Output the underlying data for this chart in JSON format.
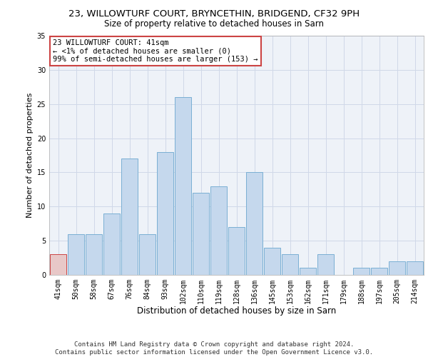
{
  "title_line1": "23, WILLOWTURF COURT, BRYNCETHIN, BRIDGEND, CF32 9PH",
  "title_line2": "Size of property relative to detached houses in Sarn",
  "xlabel": "Distribution of detached houses by size in Sarn",
  "ylabel": "Number of detached properties",
  "categories": [
    "41sqm",
    "50sqm",
    "58sqm",
    "67sqm",
    "76sqm",
    "84sqm",
    "93sqm",
    "102sqm",
    "110sqm",
    "119sqm",
    "128sqm",
    "136sqm",
    "145sqm",
    "153sqm",
    "162sqm",
    "171sqm",
    "179sqm",
    "188sqm",
    "197sqm",
    "205sqm",
    "214sqm"
  ],
  "values": [
    3,
    6,
    6,
    9,
    17,
    6,
    18,
    26,
    12,
    13,
    7,
    15,
    4,
    3,
    1,
    3,
    0,
    1,
    1,
    2,
    2
  ],
  "bar_color": "#c5d8ed",
  "bar_edge_color": "#7aafd4",
  "highlight_index": 0,
  "highlight_bar_color": "#e8c8c8",
  "highlight_edge_color": "#cc4444",
  "annotation_line1": "23 WILLOWTURF COURT: 41sqm",
  "annotation_line2": "← <1% of detached houses are smaller (0)",
  "annotation_line3": "99% of semi-detached houses are larger (153) →",
  "annotation_box_facecolor": "white",
  "annotation_box_edgecolor": "#cc4444",
  "ylim": [
    0,
    35
  ],
  "yticks": [
    0,
    5,
    10,
    15,
    20,
    25,
    30,
    35
  ],
  "grid_color": "#d0d8e8",
  "background_color": "#eef2f8",
  "footer_line1": "Contains HM Land Registry data © Crown copyright and database right 2024.",
  "footer_line2": "Contains public sector information licensed under the Open Government Licence v3.0.",
  "title_fontsize": 9.5,
  "subtitle_fontsize": 8.5,
  "xlabel_fontsize": 8.5,
  "ylabel_fontsize": 8,
  "tick_fontsize": 7,
  "annotation_fontsize": 7.5,
  "footer_fontsize": 6.5
}
